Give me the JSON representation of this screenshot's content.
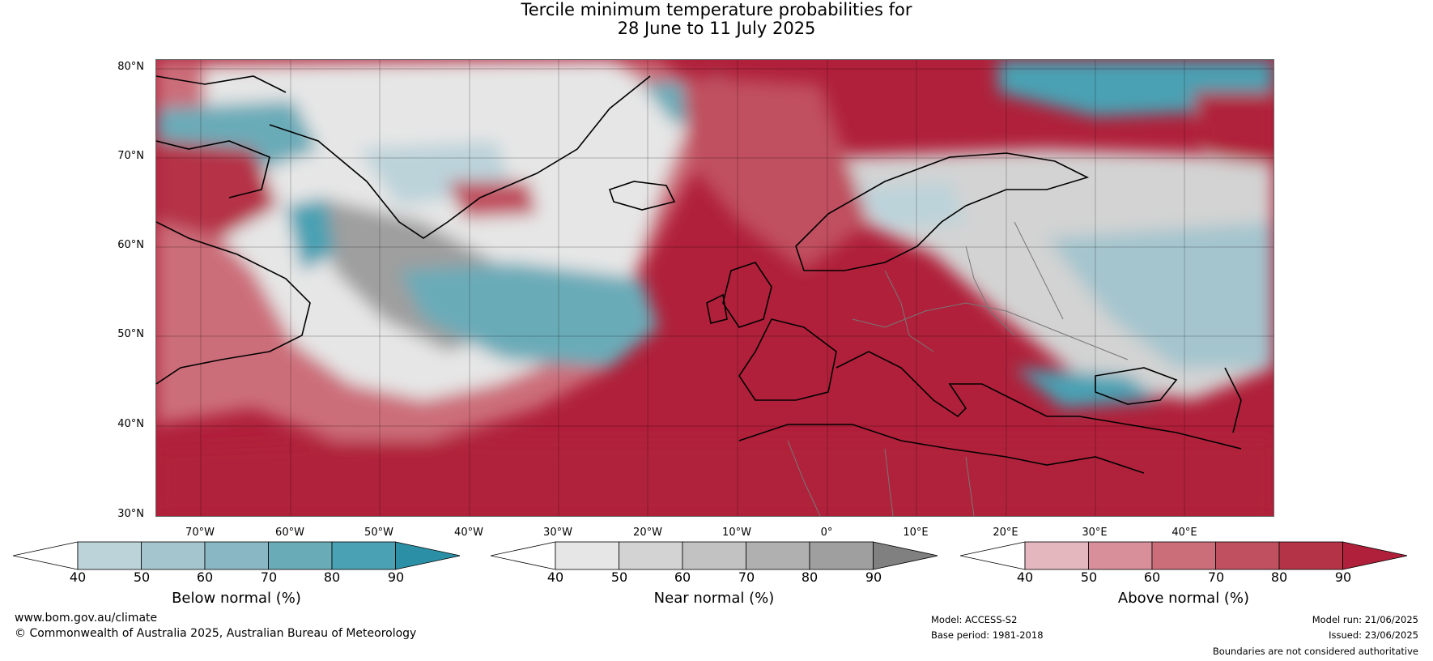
{
  "title_line1": "Tercile minimum temperature probabilities for",
  "title_line2": "28 June to 11 July 2025",
  "lat_labels": [
    "80°N",
    "70°N",
    "60°N",
    "50°N",
    "40°N",
    "30°N"
  ],
  "lon_labels": [
    "70°W",
    "60°W",
    "50°W",
    "40°W",
    "30°W",
    "20°W",
    "10°W",
    "0°",
    "10°E",
    "20°E",
    "30°E",
    "40°E"
  ],
  "colorbars": [
    {
      "label": "Below normal (%)",
      "ticks": [
        "40",
        "50",
        "60",
        "70",
        "80",
        "90"
      ],
      "colors": [
        "#ffffff",
        "#bcd3da",
        "#a4c5ce",
        "#89b8c4",
        "#6aabb8",
        "#4aa1b3",
        "#2b8fa5"
      ]
    },
    {
      "label": "Near normal (%)",
      "ticks": [
        "40",
        "50",
        "60",
        "70",
        "80",
        "90"
      ],
      "colors": [
        "#ffffff",
        "#e6e6e6",
        "#d3d3d3",
        "#c2c2c2",
        "#b0b0b0",
        "#9f9f9f",
        "#808080"
      ]
    },
    {
      "label": "Above normal (%)",
      "ticks": [
        "40",
        "50",
        "60",
        "70",
        "80",
        "90"
      ],
      "colors": [
        "#ffffff",
        "#e4b6bd",
        "#d88f99",
        "#cc6e7a",
        "#c0505f",
        "#b53347",
        "#b0203a"
      ]
    }
  ],
  "footer": {
    "url": "www.bom.gov.au/climate",
    "copyright": "© Commonwealth of Australia 2025, Australian Bureau of Meteorology",
    "model": "Model: ACCESS-S2",
    "base_period": "Base period: 1981-2018",
    "model_run": "Model run: 21/06/2025",
    "issued": "Issued: 23/06/2025",
    "disclaimer": "Boundaries are not considered authoritative"
  }
}
